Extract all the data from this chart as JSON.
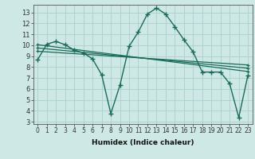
{
  "title": "",
  "xlabel": "Humidex (Indice chaleur)",
  "bg_color": "#cde8e5",
  "grid_color": "#aacfcc",
  "line_color": "#1a6b5a",
  "xlim": [
    -0.5,
    23.5
  ],
  "ylim": [
    2.8,
    13.7
  ],
  "yticks": [
    3,
    4,
    5,
    6,
    7,
    8,
    9,
    10,
    11,
    12,
    13
  ],
  "xticks": [
    0,
    1,
    2,
    3,
    4,
    5,
    6,
    7,
    8,
    9,
    10,
    11,
    12,
    13,
    14,
    15,
    16,
    17,
    18,
    19,
    20,
    21,
    22,
    23
  ],
  "main_x": [
    0,
    1,
    2,
    3,
    4,
    5,
    6,
    7,
    8,
    9,
    10,
    11,
    12,
    13,
    14,
    15,
    16,
    17,
    18,
    19,
    20,
    21,
    22,
    23
  ],
  "main_y": [
    8.7,
    10.1,
    10.35,
    10.05,
    9.55,
    9.3,
    8.75,
    7.3,
    3.75,
    6.35,
    9.9,
    11.2,
    12.85,
    13.4,
    12.85,
    11.7,
    10.5,
    9.4,
    7.55,
    7.55,
    7.55,
    6.5,
    3.4,
    7.25
  ],
  "trend_lines": [
    {
      "x": [
        0,
        23
      ],
      "y": [
        10.05,
        7.6
      ]
    },
    {
      "x": [
        0,
        23
      ],
      "y": [
        9.75,
        7.9
      ]
    },
    {
      "x": [
        0,
        23
      ],
      "y": [
        9.45,
        8.2
      ]
    }
  ],
  "xlabel_fontsize": 6.5,
  "tick_fontsize_x": 5.5,
  "tick_fontsize_y": 6.0
}
